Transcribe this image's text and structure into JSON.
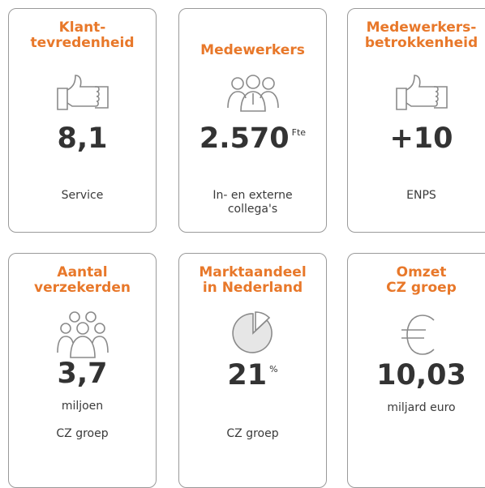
{
  "cards": [
    {
      "title": [
        "Klant-",
        "tevredenheid"
      ],
      "value": "8,1",
      "caption": [
        "Service"
      ]
    },
    {
      "title": [
        "Medewerkers"
      ],
      "value": "2.570",
      "unit": "Fte",
      "caption": [
        "In- en externe",
        "collega's"
      ]
    },
    {
      "title": [
        "Medewerkers-",
        "betrokkenheid"
      ],
      "value": "+10",
      "caption": [
        "ENPS"
      ]
    },
    {
      "title": [
        "Aantal",
        "verzekerden"
      ],
      "value": "3,7",
      "subline": "miljoen",
      "caption": [
        "CZ groep"
      ]
    },
    {
      "title": [
        "Marktaandeel",
        "in Nederland"
      ],
      "value": "21",
      "unit": "%",
      "caption": [
        "CZ groep"
      ]
    },
    {
      "title": [
        "Omzet",
        "CZ groep"
      ],
      "value": "10,03",
      "subline": "miljard euro"
    }
  ]
}
